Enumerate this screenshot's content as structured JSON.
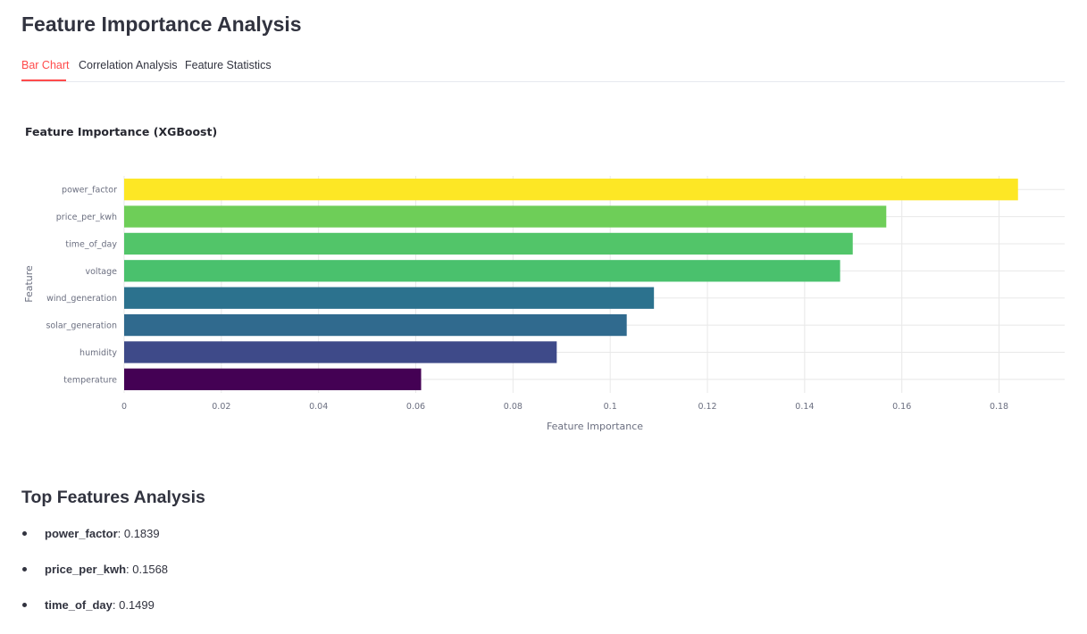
{
  "page": {
    "title": "Feature Importance Analysis"
  },
  "tabs": [
    {
      "label": "Bar Chart",
      "active": true
    },
    {
      "label": "Correlation Analysis",
      "active": false
    },
    {
      "label": "Feature Statistics",
      "active": false
    }
  ],
  "chart_data": {
    "type": "bar",
    "orientation": "horizontal",
    "title": "Feature Importance (XGBoost)",
    "xlabel": "Feature Importance",
    "ylabel": "Feature",
    "xlim": [
      0,
      0.1935
    ],
    "xticks": [
      0,
      0.02,
      0.04,
      0.06,
      0.08,
      0.1,
      0.12,
      0.14,
      0.16,
      0.18
    ],
    "xtick_labels": [
      "0",
      "0.02",
      "0.04",
      "0.06",
      "0.08",
      "0.1",
      "0.12",
      "0.14",
      "0.16",
      "0.18"
    ],
    "grid": true,
    "categories": [
      "power_factor",
      "price_per_kwh",
      "time_of_day",
      "voltage",
      "wind_generation",
      "solar_generation",
      "humidity",
      "temperature"
    ],
    "values": [
      0.1839,
      0.1568,
      0.1499,
      0.1473,
      0.109,
      0.1034,
      0.089,
      0.0611
    ],
    "colors": [
      "#fde725",
      "#6ece58",
      "#52c569",
      "#4ac16d",
      "#2c728e",
      "#306a8e",
      "#3e4a89",
      "#440154"
    ]
  },
  "top_features": {
    "title": "Top Features Analysis",
    "items": [
      {
        "name": "power_factor",
        "value": ": 0.1839"
      },
      {
        "name": "price_per_kwh",
        "value": ": 0.1568"
      },
      {
        "name": "time_of_day",
        "value": ": 0.1499"
      }
    ]
  }
}
